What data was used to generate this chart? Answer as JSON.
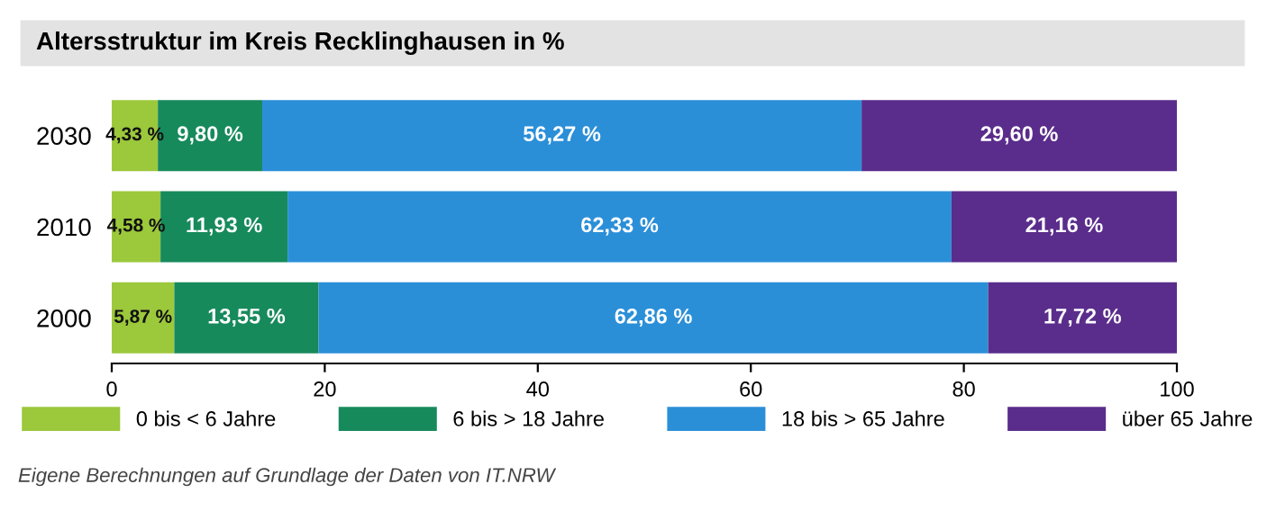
{
  "chart_data": {
    "type": "bar",
    "orientation": "horizontal",
    "stacked": true,
    "title": "Altersstruktur im Kreis Recklinghausen in %",
    "categories": [
      "2030",
      "2010",
      "2000"
    ],
    "series": [
      {
        "name": "0 bis < 6 Jahre",
        "color": "#9cc83c",
        "values": [
          4.33,
          4.58,
          5.87
        ],
        "value_labels": [
          "4,33 %",
          "4,58 %",
          "5,87 %"
        ]
      },
      {
        "name": "6 bis > 18 Jahre",
        "color": "#178a5c",
        "values": [
          9.8,
          11.93,
          13.55
        ],
        "value_labels": [
          "9,80 %",
          "11,93 %",
          "13,55 %"
        ]
      },
      {
        "name": "18 bis > 65 Jahre",
        "color": "#2b8fd8",
        "values": [
          56.27,
          62.33,
          62.86
        ],
        "value_labels": [
          "56,27 %",
          "62,33 %",
          "62,86 %"
        ]
      },
      {
        "name": "über 65 Jahre",
        "color": "#5a2d8c",
        "values": [
          29.6,
          21.16,
          17.72
        ],
        "value_labels": [
          "29,60 %",
          "21,16 %",
          "17,72 %"
        ]
      }
    ],
    "xlim": [
      0,
      100
    ],
    "xticks": [
      0,
      20,
      40,
      60,
      80,
      100
    ],
    "grid": false,
    "legend": "bottom",
    "annotations": [
      "Eigene Berechnungen auf Grundlage der Daten von IT.NRW"
    ]
  }
}
